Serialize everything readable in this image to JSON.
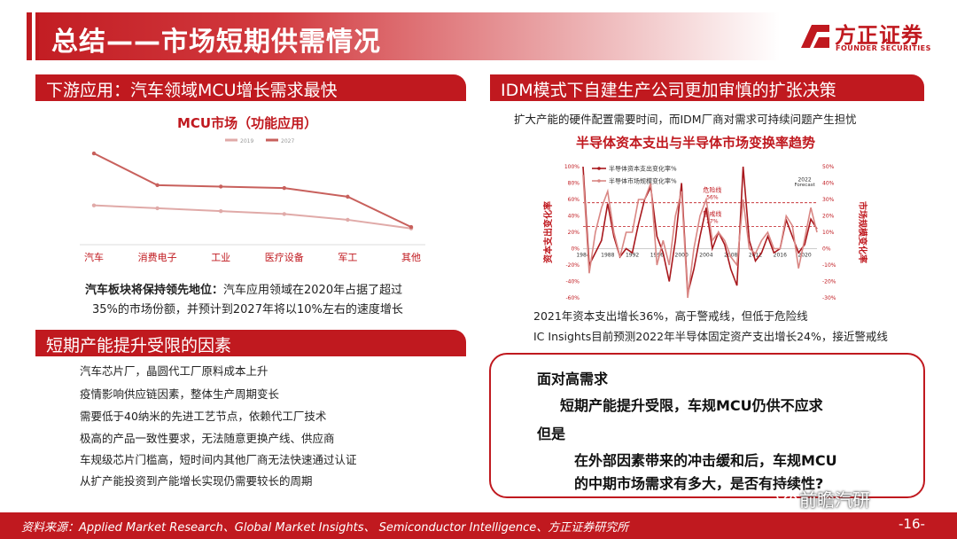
{
  "header": {
    "title": "总结——市场短期供需情况",
    "logo_cn": "方正证券",
    "logo_en": "FOUNDER SECURITIES",
    "accent": "#c0191f"
  },
  "left": {
    "section1_title": "下游应用：汽车领域MCU增长需求最快",
    "note_bold": "汽车板块将保持领先地位：",
    "note_rest": "汽车应用领域在2020年占据了超过",
    "note_line2": "35%的市场份额，并预计到2027年将以10%左右的速度增长",
    "section2_title": "短期产能提升受限的因素",
    "factors": [
      "汽车芯片厂，晶圆代工厂原料成本上升",
      "疫情影响供应链因素，整体生产周期变长",
      "需要低于40纳米的先进工艺节点，依赖代工厂技术",
      "极高的产品一致性要求，无法随意更换产线、供应商",
      "车规级芯片门槛高，短时间内其他厂商无法快速通过认证",
      "从扩产能投资到产能增长实现仍需要较长的周期"
    ]
  },
  "right": {
    "section_title": "IDM模式下自建生产公司更加审慎的扩张决策",
    "intro": "扩大产能的硬件配置需要时间，而IDM厂商对需求可持续问题产生担忧",
    "note1": "2021年资本支出增长36%，高于警戒线，但低于危险线",
    "note2": "IC Insights目前预测2022年半导体固定资产支出增长24%，接近警戒线"
  },
  "box": {
    "line1": "面对高需求",
    "line2": "短期产能提升受限，车规MCU仍供不应求",
    "line3": "但是",
    "line4": "在外部因素带来的冲击缓和后，车规MCU",
    "line5": "的中期市场需求有多大，是否有持续性?"
  },
  "footer": {
    "source": "资料来源：Applied Market Research、Global Market Insights、 Semiconductor Intelligence、方正证券研究所",
    "watermark": "前瞻汽研",
    "page": "-16-"
  },
  "chart_data": [
    {
      "type": "line",
      "title": "MCU市场（功能应用）",
      "categories": [
        "汽车",
        "消费电子",
        "工业",
        "医疗设备",
        "军工",
        "其他"
      ],
      "series": [
        {
          "name": "2019",
          "values": [
            26,
            24,
            22,
            20,
            16,
            10
          ],
          "color": "#e0aaa8"
        },
        {
          "name": "2027",
          "values": [
            62,
            40,
            39,
            38,
            32,
            11
          ],
          "color": "#c8605c"
        }
      ],
      "ylim": [
        0,
        70
      ],
      "grid": false,
      "legend": "top-center"
    },
    {
      "type": "line",
      "title": "半导体资本支出与半导体市场变换率趋势",
      "ylabel": "资本支出变化率",
      "y2label": "市场规模变化率",
      "x_ticks": [
        1984,
        1988,
        1992,
        1996,
        2000,
        2004,
        2008,
        2012,
        2016,
        2020
      ],
      "y_ticks": [
        "100%",
        "80%",
        "60%",
        "40%",
        "20%",
        "0%",
        "-20%",
        "-40%",
        "-60%"
      ],
      "y2_ticks": [
        "50%",
        "40%",
        "30%",
        "20%",
        "10%",
        "0%",
        "-10%",
        "-20%",
        "-30%"
      ],
      "ylim": [
        -60,
        100
      ],
      "y2lim": [
        -30,
        50
      ],
      "series": [
        {
          "name": "半导体资本支出变化率%",
          "color": "#a8181d",
          "x": [
            1984,
            1985,
            1986,
            1987,
            1988,
            1989,
            1990,
            1991,
            1992,
            1993,
            1994,
            1995,
            1996,
            1997,
            1998,
            1999,
            2000,
            2001,
            2002,
            2003,
            2004,
            2005,
            2006,
            2007,
            2008,
            2009,
            2010,
            2011,
            2012,
            2013,
            2014,
            2015,
            2016,
            2017,
            2018,
            2019,
            2020,
            2021,
            2022
          ],
          "values": [
            100,
            -20,
            -5,
            10,
            55,
            15,
            -10,
            0,
            -5,
            30,
            60,
            75,
            15,
            -5,
            -40,
            10,
            80,
            -55,
            -25,
            15,
            50,
            0,
            20,
            5,
            -25,
            -45,
            100,
            10,
            -15,
            -5,
            15,
            -5,
            0,
            35,
            15,
            -5,
            5,
            36,
            24
          ]
        },
        {
          "name": "半导体市场规模变化率%",
          "color": "#d98784",
          "x": [
            1984,
            1985,
            1986,
            1987,
            1988,
            1989,
            1990,
            1991,
            1992,
            1993,
            1994,
            1995,
            1996,
            1997,
            1998,
            1999,
            2000,
            2001,
            2002,
            2003,
            2004,
            2005,
            2006,
            2007,
            2008,
            2009,
            2010,
            2011,
            2012,
            2013,
            2014,
            2015,
            2016,
            2017,
            2018,
            2019,
            2020,
            2021,
            2022
          ],
          "values": [
            45,
            -15,
            10,
            25,
            35,
            10,
            -5,
            10,
            10,
            30,
            30,
            40,
            -10,
            5,
            -10,
            20,
            35,
            -30,
            0,
            20,
            30,
            5,
            10,
            5,
            -5,
            -10,
            30,
            0,
            -3,
            5,
            10,
            0,
            0,
            20,
            14,
            -12,
            6,
            25,
            10
          ]
        }
      ],
      "annotations": [
        {
          "text": "危险线",
          "value": 56,
          "label": "56%"
        },
        {
          "text": "警戒线",
          "value": 27,
          "label": "27%"
        },
        {
          "text": "2022 Forecast"
        }
      ]
    }
  ]
}
